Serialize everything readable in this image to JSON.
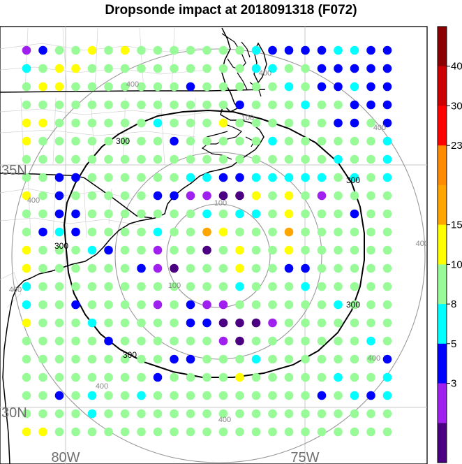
{
  "title": "Dropsonde impact at 2018091318 (F072)",
  "lat_labels": [
    "35N",
    "30N"
  ],
  "lon_labels": [
    "80W",
    "75W"
  ],
  "inner_ring_labels": [
    "100",
    "100",
    "100"
  ],
  "contour_labels": [
    "300",
    "300",
    "300",
    "300",
    "300"
  ],
  "outer_ring_labels": [
    "400",
    "400",
    "400",
    "400",
    "400",
    "400",
    "400",
    "400",
    "400"
  ],
  "colorbar": {
    "labels": [
      "40",
      "30",
      "23",
      "15",
      "10",
      "8",
      "5",
      "3"
    ],
    "colors": [
      "#8b0000",
      "#cc0000",
      "#ff0000",
      "#ff8c00",
      "#ffa500",
      "#ffff00",
      "#98fb98",
      "#00ffff",
      "#0000ff",
      "#a020f0",
      "#4b0082"
    ]
  },
  "dot_palette": {
    "G": "#98fb98",
    "C": "#00ffff",
    "B": "#0000ff",
    "P": "#a020f0",
    "D": "#4b0082",
    "Y": "#ffff00",
    "O": "#ffa500"
  },
  "dot_rows": [
    "PBGGYGYGGGGGGGCBBBBCCBB",
    "CGYYGGGGGGGGGGCCGGBBBBB",
    "GYYGGGGGGGBGGGGGCGBBCBB",
    "GGGGGGGGGGGGGBGGGCGGBBB",
    "YYGGGGGGCGGGYGGGGGGBBGB",
    "YGGGGGGGGBGGGGGCGGGGGGC",
    "GGGGGGGGGGGGGGGGGGGCGGC",
    "GGBBGGGGGGCCBBCCCCCGCGC",
    "YGBGGGGGBBPPDDYGYGPGGGG",
    "GGBBGGGGGGGCGCCGYGGGBGG",
    "GBCBGGGGCGGOYGGGOGGGGGG",
    "YGGGCBGGPGGDGYGGYGGGGGG",
    "YGGGGGGBPDGGGYGGBBGGGGG",
    "CGGGGGGGGGGGGCGGGCGGGGG",
    "CGGBGGGGPGBPPGGGGGGCGGG",
    "YGGGCGGGGGBBDDDPGGGGGGG",
    "GGGGGBGGGGGGPDGGGGGGGCG",
    "GGGGGGGGGBBGGGCGGGGGGGB",
    "GGGGGGGGBGGGGYGGGGGCGGC",
    "GGBGCGGCGGGGGGGGGGBGCBC",
    "GGGGCGGGGGGGGGGGGGGGGGG",
    "YYGGGGGGGGGGGGGGGGGGGGG"
  ]
}
